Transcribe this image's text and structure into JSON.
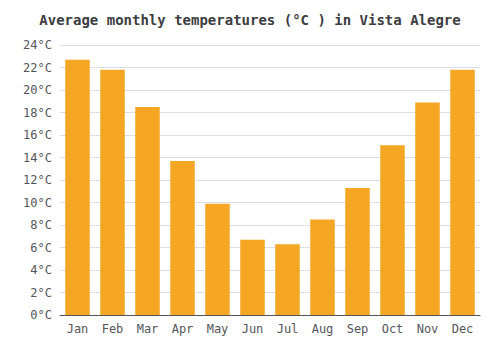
{
  "chart_data": {
    "type": "bar",
    "title": "Average monthly temperatures (°C ) in Vista Alegre",
    "categories": [
      "Jan",
      "Feb",
      "Mar",
      "Apr",
      "May",
      "Jun",
      "Jul",
      "Aug",
      "Sep",
      "Oct",
      "Nov",
      "Dec"
    ],
    "values": [
      22.7,
      21.8,
      18.5,
      13.7,
      9.9,
      6.7,
      6.3,
      8.5,
      11.3,
      15.1,
      18.9,
      21.8
    ],
    "color": "#F5A623",
    "ylim": [
      0,
      24
    ],
    "yticks": [
      {
        "value": 0,
        "label": "0°C"
      },
      {
        "value": 2,
        "label": "2°C"
      },
      {
        "value": 4,
        "label": "4°C"
      },
      {
        "value": 6,
        "label": "6°C"
      },
      {
        "value": 8,
        "label": "8°C"
      },
      {
        "value": 10,
        "label": "10°C"
      },
      {
        "value": 12,
        "label": "12°C"
      },
      {
        "value": 14,
        "label": "14°C"
      },
      {
        "value": 16,
        "label": "16°C"
      },
      {
        "value": 18,
        "label": "18°C"
      },
      {
        "value": 20,
        "label": "20°C"
      },
      {
        "value": 22,
        "label": "22°C"
      },
      {
        "value": 24,
        "label": "24°C"
      }
    ],
    "grid": true
  }
}
